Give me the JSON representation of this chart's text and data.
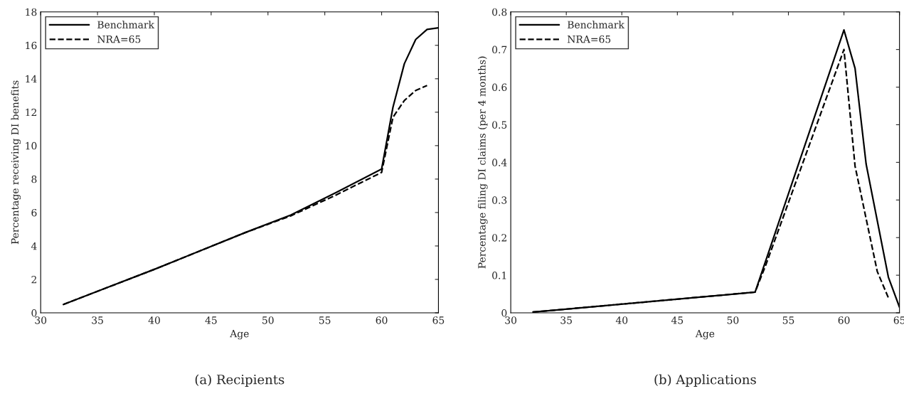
{
  "chart_data": [
    {
      "type": "line",
      "xlabel": "Age",
      "ylabel": "Percentage receiving DI benefits",
      "annotations": [
        "(a) Recipients"
      ],
      "xlim": [
        30,
        65
      ],
      "xticks": [
        30,
        35,
        40,
        45,
        50,
        55,
        60,
        65
      ],
      "ylim": [
        0,
        18
      ],
      "yticks": [
        0,
        2,
        4,
        6,
        8,
        10,
        12,
        14,
        16,
        18
      ],
      "grid": false,
      "legend": "top left",
      "series": [
        {
          "name": "Benchmark",
          "color": "#000000",
          "line_style": "solid",
          "x": [
            32,
            36,
            40,
            44,
            48,
            52,
            56,
            60,
            61,
            62,
            63,
            64,
            65
          ],
          "values": [
            0.5,
            1.55,
            2.6,
            3.7,
            4.8,
            5.85,
            7.2,
            8.6,
            12.3,
            14.9,
            16.35,
            16.95,
            17.05
          ]
        },
        {
          "name": "NRA=65",
          "color": "#000000",
          "line_style": "dashed",
          "x": [
            32,
            36,
            40,
            44,
            48,
            52,
            56,
            60,
            61,
            62,
            63,
            64
          ],
          "values": [
            0.5,
            1.55,
            2.6,
            3.7,
            4.8,
            5.8,
            7.05,
            8.4,
            11.7,
            12.7,
            13.3,
            13.6
          ]
        }
      ]
    },
    {
      "type": "line",
      "xlabel": "Age",
      "ylabel": "Percentage filing DI claims (per 4 months)",
      "annotations": [
        "(b) Applications"
      ],
      "xlim": [
        30,
        65
      ],
      "xticks": [
        30,
        35,
        40,
        45,
        50,
        55,
        60,
        65
      ],
      "ylim": [
        0,
        0.8
      ],
      "yticks": [
        0,
        0.1,
        0.2,
        0.3,
        0.4,
        0.5,
        0.6,
        0.7,
        0.8
      ],
      "grid": false,
      "legend": "top left",
      "series": [
        {
          "name": "Benchmark",
          "color": "#000000",
          "line_style": "solid",
          "x": [
            32,
            52,
            60,
            61,
            62,
            64,
            65
          ],
          "values": [
            0.002,
            0.055,
            0.752,
            0.65,
            0.395,
            0.095,
            0.015
          ]
        },
        {
          "name": "NRA=65",
          "color": "#000000",
          "line_style": "dashed",
          "x": [
            32,
            52,
            53,
            60,
            61,
            63,
            64
          ],
          "values": [
            0.002,
            0.055,
            0.13,
            0.7,
            0.39,
            0.11,
            0.04
          ]
        }
      ]
    }
  ]
}
